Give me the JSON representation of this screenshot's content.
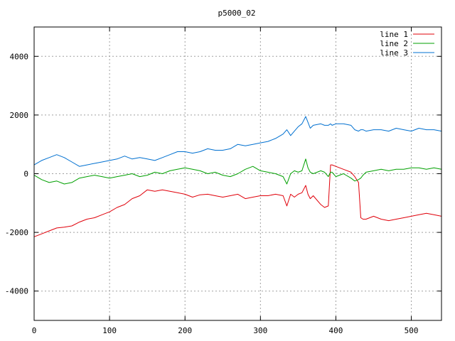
{
  "chart_data": {
    "type": "line",
    "title": "p5000_02",
    "xlabel": "",
    "ylabel": "",
    "xlim": [
      0,
      540
    ],
    "ylim": [
      -5000,
      5000
    ],
    "grid": true,
    "legend_position": "top-right",
    "xticks": [
      0,
      100,
      200,
      300,
      400,
      500
    ],
    "yticks": [
      -4000,
      -2000,
      0,
      2000,
      4000
    ],
    "x": [
      0,
      10,
      20,
      30,
      40,
      50,
      60,
      70,
      80,
      90,
      100,
      110,
      120,
      130,
      140,
      150,
      160,
      170,
      180,
      190,
      200,
      210,
      220,
      230,
      240,
      250,
      260,
      270,
      280,
      290,
      300,
      310,
      320,
      330,
      335,
      340,
      345,
      350,
      355,
      360,
      363,
      366,
      370,
      380,
      385,
      390,
      393,
      395,
      400,
      410,
      420,
      425,
      430,
      433,
      436,
      440,
      450,
      460,
      470,
      480,
      490,
      500,
      510,
      520,
      530,
      540
    ],
    "series": [
      {
        "name": "line 1",
        "color": "#e0000a",
        "values": [
          -2150,
          -2050,
          -1950,
          -1850,
          -1820,
          -1780,
          -1650,
          -1550,
          -1500,
          -1400,
          -1300,
          -1150,
          -1050,
          -850,
          -750,
          -550,
          -600,
          -550,
          -600,
          -650,
          -700,
          -800,
          -720,
          -700,
          -750,
          -800,
          -750,
          -700,
          -850,
          -800,
          -750,
          -750,
          -700,
          -750,
          -1100,
          -700,
          -800,
          -700,
          -650,
          -400,
          -700,
          -850,
          -750,
          -1050,
          -1150,
          -1100,
          300,
          300,
          250,
          150,
          50,
          -100,
          -300,
          -1500,
          -1550,
          -1550,
          -1450,
          -1550,
          -1600,
          -1550,
          -1500,
          -1450,
          -1400,
          -1350,
          -1400,
          -1450
        ]
      },
      {
        "name": "line 2",
        "color": "#00a000",
        "values": [
          -50,
          -200,
          -300,
          -250,
          -350,
          -300,
          -150,
          -100,
          -50,
          -100,
          -150,
          -100,
          -50,
          0,
          -100,
          -50,
          50,
          0,
          100,
          150,
          200,
          150,
          100,
          0,
          50,
          -50,
          -100,
          0,
          150,
          250,
          100,
          50,
          0,
          -100,
          -350,
          0,
          100,
          50,
          100,
          500,
          200,
          50,
          0,
          100,
          50,
          -100,
          50,
          50,
          -100,
          0,
          -150,
          -250,
          -200,
          -150,
          -50,
          50,
          100,
          150,
          100,
          150,
          150,
          200,
          200,
          150,
          200,
          150
        ]
      },
      {
        "name": "line 3",
        "color": "#0070d0",
        "values": [
          300,
          450,
          550,
          650,
          550,
          400,
          250,
          300,
          350,
          400,
          450,
          500,
          600,
          500,
          550,
          500,
          450,
          550,
          650,
          750,
          750,
          700,
          750,
          850,
          800,
          800,
          850,
          1000,
          950,
          1000,
          1050,
          1100,
          1200,
          1350,
          1500,
          1300,
          1450,
          1600,
          1700,
          1950,
          1750,
          1550,
          1650,
          1700,
          1650,
          1650,
          1700,
          1650,
          1700,
          1700,
          1650,
          1500,
          1450,
          1500,
          1500,
          1450,
          1500,
          1500,
          1450,
          1550,
          1500,
          1450,
          1550,
          1500,
          1500,
          1450
        ]
      }
    ]
  }
}
